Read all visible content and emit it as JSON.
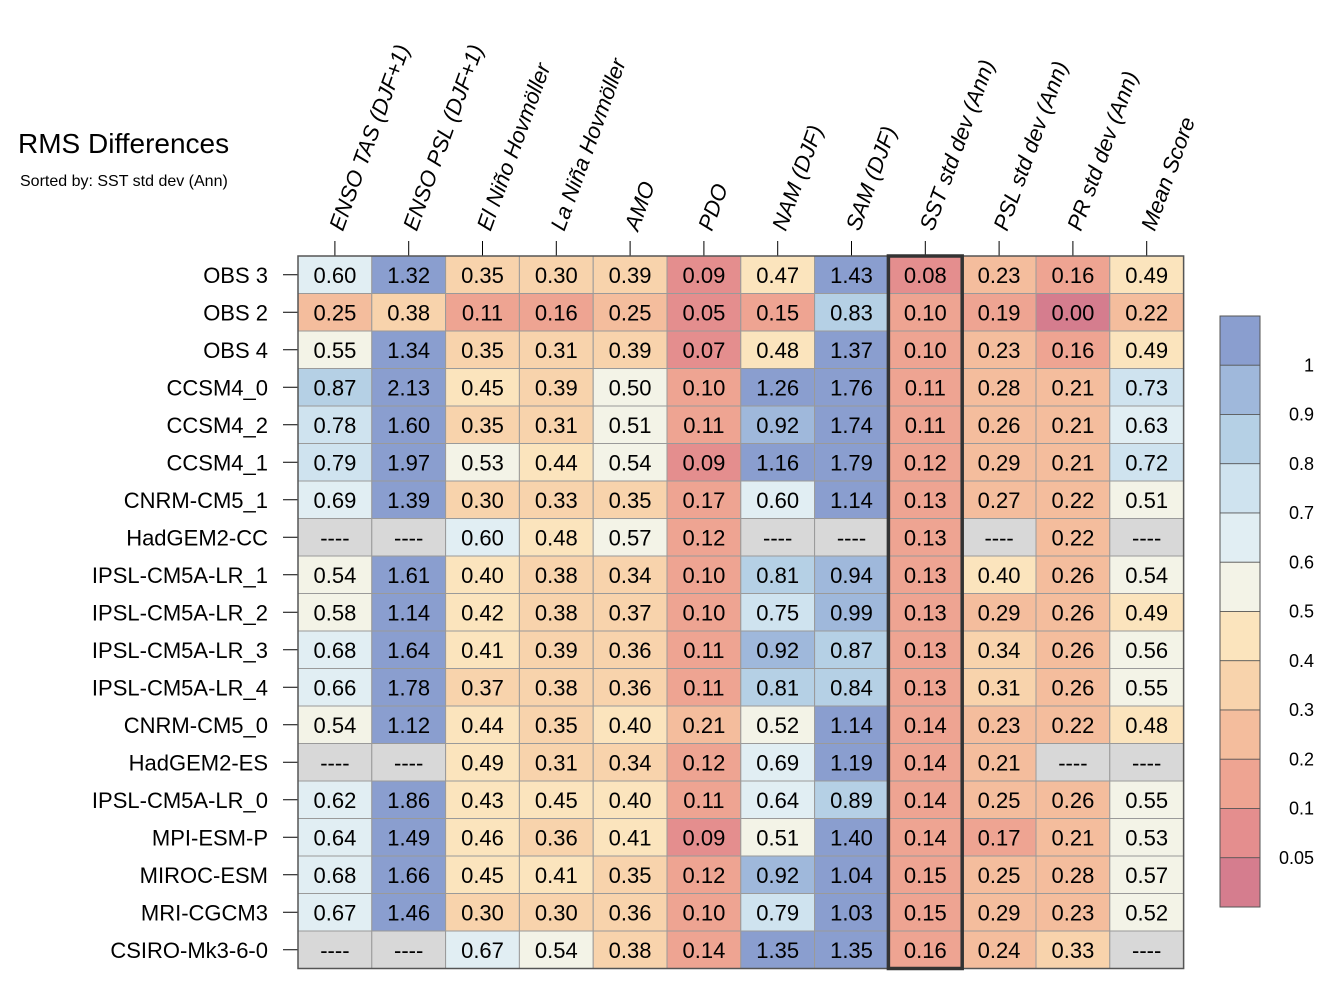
{
  "chart_data": {
    "type": "heatmap",
    "title": "RMS Differences",
    "subtitle": "Sorted by: SST std dev (Ann)",
    "columns": [
      "ENSO TAS (DJF+1)",
      "ENSO PSL (DJF+1)",
      "El Niño Hovmöller",
      "La Niña Hovmöller",
      "AMO",
      "PDO",
      "NAM (DJF)",
      "SAM (DJF)",
      "SST std dev (Ann)",
      "PSL std dev (Ann)",
      "PR std dev (Ann)",
      "Mean Score"
    ],
    "sorted_column": "SST std dev (Ann)",
    "missing_label": "----",
    "rows": [
      {
        "name": "OBS 3",
        "values": [
          0.6,
          1.32,
          0.35,
          0.3,
          0.39,
          0.09,
          0.47,
          1.43,
          0.08,
          0.23,
          0.16,
          0.49
        ]
      },
      {
        "name": "OBS 2",
        "values": [
          0.25,
          0.38,
          0.11,
          0.16,
          0.25,
          0.05,
          0.15,
          0.83,
          0.1,
          0.19,
          0.0,
          0.22
        ]
      },
      {
        "name": "OBS 4",
        "values": [
          0.55,
          1.34,
          0.35,
          0.31,
          0.39,
          0.07,
          0.48,
          1.37,
          0.1,
          0.23,
          0.16,
          0.49
        ]
      },
      {
        "name": "CCSM4_0",
        "values": [
          0.87,
          2.13,
          0.45,
          0.39,
          0.5,
          0.1,
          1.26,
          1.76,
          0.11,
          0.28,
          0.21,
          0.73
        ]
      },
      {
        "name": "CCSM4_2",
        "values": [
          0.78,
          1.6,
          0.35,
          0.31,
          0.51,
          0.11,
          0.92,
          1.74,
          0.11,
          0.26,
          0.21,
          0.63
        ]
      },
      {
        "name": "CCSM4_1",
        "values": [
          0.79,
          1.97,
          0.53,
          0.44,
          0.54,
          0.09,
          1.16,
          1.79,
          0.12,
          0.29,
          0.21,
          0.72
        ]
      },
      {
        "name": "CNRM-CM5_1",
        "values": [
          0.69,
          1.39,
          0.3,
          0.33,
          0.35,
          0.17,
          0.6,
          1.14,
          0.13,
          0.27,
          0.22,
          0.51
        ]
      },
      {
        "name": "HadGEM2-CC",
        "values": [
          null,
          null,
          0.6,
          0.48,
          0.57,
          0.12,
          null,
          null,
          0.13,
          null,
          0.22,
          null
        ]
      },
      {
        "name": "IPSL-CM5A-LR_1",
        "values": [
          0.54,
          1.61,
          0.4,
          0.38,
          0.34,
          0.1,
          0.81,
          0.94,
          0.13,
          0.4,
          0.26,
          0.54
        ]
      },
      {
        "name": "IPSL-CM5A-LR_2",
        "values": [
          0.58,
          1.14,
          0.42,
          0.38,
          0.37,
          0.1,
          0.75,
          0.99,
          0.13,
          0.29,
          0.26,
          0.49
        ]
      },
      {
        "name": "IPSL-CM5A-LR_3",
        "values": [
          0.68,
          1.64,
          0.41,
          0.39,
          0.36,
          0.11,
          0.92,
          0.87,
          0.13,
          0.34,
          0.26,
          0.56
        ]
      },
      {
        "name": "IPSL-CM5A-LR_4",
        "values": [
          0.66,
          1.78,
          0.37,
          0.38,
          0.36,
          0.11,
          0.81,
          0.84,
          0.13,
          0.31,
          0.26,
          0.55
        ]
      },
      {
        "name": "CNRM-CM5_0",
        "values": [
          0.54,
          1.12,
          0.44,
          0.35,
          0.4,
          0.21,
          0.52,
          1.14,
          0.14,
          0.23,
          0.22,
          0.48
        ]
      },
      {
        "name": "HadGEM2-ES",
        "values": [
          null,
          null,
          0.49,
          0.31,
          0.34,
          0.12,
          0.69,
          1.19,
          0.14,
          0.21,
          null,
          null
        ]
      },
      {
        "name": "IPSL-CM5A-LR_0",
        "values": [
          0.62,
          1.86,
          0.43,
          0.45,
          0.4,
          0.11,
          0.64,
          0.89,
          0.14,
          0.25,
          0.26,
          0.55
        ]
      },
      {
        "name": "MPI-ESM-P",
        "values": [
          0.64,
          1.49,
          0.46,
          0.36,
          0.41,
          0.09,
          0.51,
          1.4,
          0.14,
          0.17,
          0.21,
          0.53
        ]
      },
      {
        "name": "MIROC-ESM",
        "values": [
          0.68,
          1.66,
          0.45,
          0.41,
          0.35,
          0.12,
          0.92,
          1.04,
          0.15,
          0.25,
          0.28,
          0.57
        ]
      },
      {
        "name": "MRI-CGCM3",
        "values": [
          0.67,
          1.46,
          0.3,
          0.3,
          0.36,
          0.1,
          0.79,
          1.03,
          0.15,
          0.29,
          0.23,
          0.52
        ]
      },
      {
        "name": "CSIRO-Mk3-6-0",
        "values": [
          null,
          null,
          0.67,
          0.54,
          0.38,
          0.14,
          1.35,
          1.35,
          0.16,
          0.24,
          0.33,
          null
        ]
      }
    ],
    "colorbar": {
      "levels": [
        0,
        0.05,
        0.1,
        0.2,
        0.3,
        0.4,
        0.5,
        0.6,
        0.7,
        0.8,
        0.9,
        1
      ],
      "labels": [
        "1",
        "0.9",
        "0.8",
        "0.7",
        "0.6",
        "0.5",
        "0.4",
        "0.3",
        "0.2",
        "0.1",
        "0.05"
      ],
      "colors": [
        "#d57d8e",
        "#e48e8e",
        "#eea492",
        "#f4bd9d",
        "#f8d3ac",
        "#fbe4bd",
        "#f3f3e7",
        "#e1eef3",
        "#cfe3ef",
        "#b5d0e5",
        "#9fb8db",
        "#8a9ecf"
      ],
      "missing_color": "#d8d8d8"
    }
  }
}
